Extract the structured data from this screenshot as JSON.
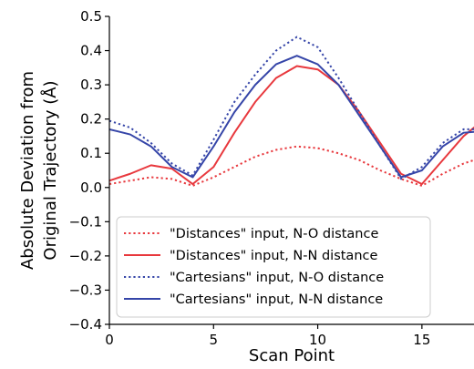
{
  "chart_data": {
    "type": "line",
    "title": "",
    "xlabel": "Scan Point",
    "ylabel": [
      "Absolute Deviation from",
      "Original Trajectory (Å)"
    ],
    "xlim": [
      0,
      17.5
    ],
    "ylim": [
      -0.4,
      0.5
    ],
    "xticks": [
      0,
      5,
      10,
      15
    ],
    "xtick_labels": [
      "0",
      "5",
      "10",
      "15"
    ],
    "yticks": [
      -0.4,
      -0.3,
      -0.2,
      -0.1,
      0.0,
      0.1,
      0.2,
      0.3,
      0.4,
      0.5
    ],
    "ytick_labels": [
      "−0.4",
      "−0.3",
      "−0.2",
      "−0.1",
      "0.0",
      "0.1",
      "0.2",
      "0.3",
      "0.4",
      "0.5"
    ],
    "grid": false,
    "legend_position": "lower-left",
    "x": [
      0,
      1,
      2,
      3,
      4,
      5,
      6,
      7,
      8,
      9,
      10,
      11,
      12,
      13,
      14,
      15,
      16,
      17,
      18
    ],
    "series": [
      {
        "name": "\"Distances\" input, N-O distance",
        "color": "#e8383d",
        "style": "dotted",
        "values": [
          0.01,
          0.02,
          0.03,
          0.025,
          0.005,
          0.03,
          0.06,
          0.09,
          0.11,
          0.12,
          0.115,
          0.1,
          0.08,
          0.05,
          0.025,
          0.005,
          0.04,
          0.07,
          0.09
        ]
      },
      {
        "name": "\"Distances\" input, N-N distance",
        "color": "#e8383d",
        "style": "solid",
        "values": [
          0.02,
          0.04,
          0.065,
          0.055,
          0.01,
          0.06,
          0.16,
          0.25,
          0.32,
          0.355,
          0.345,
          0.3,
          0.22,
          0.13,
          0.04,
          0.01,
          0.08,
          0.15,
          0.2
        ]
      },
      {
        "name": "\"Cartesians\" input, N-O distance",
        "color": "#3545a8",
        "style": "dotted",
        "values": [
          0.195,
          0.175,
          0.13,
          0.07,
          0.035,
          0.14,
          0.25,
          0.33,
          0.4,
          0.44,
          0.41,
          0.32,
          0.22,
          0.12,
          0.025,
          0.06,
          0.13,
          0.17,
          0.17
        ]
      },
      {
        "name": "\"Cartesians\" input, N-N distance",
        "color": "#3545a8",
        "style": "solid",
        "values": [
          0.17,
          0.155,
          0.12,
          0.06,
          0.03,
          0.12,
          0.22,
          0.3,
          0.36,
          0.385,
          0.36,
          0.3,
          0.21,
          0.12,
          0.03,
          0.05,
          0.12,
          0.16,
          0.165
        ]
      }
    ]
  }
}
